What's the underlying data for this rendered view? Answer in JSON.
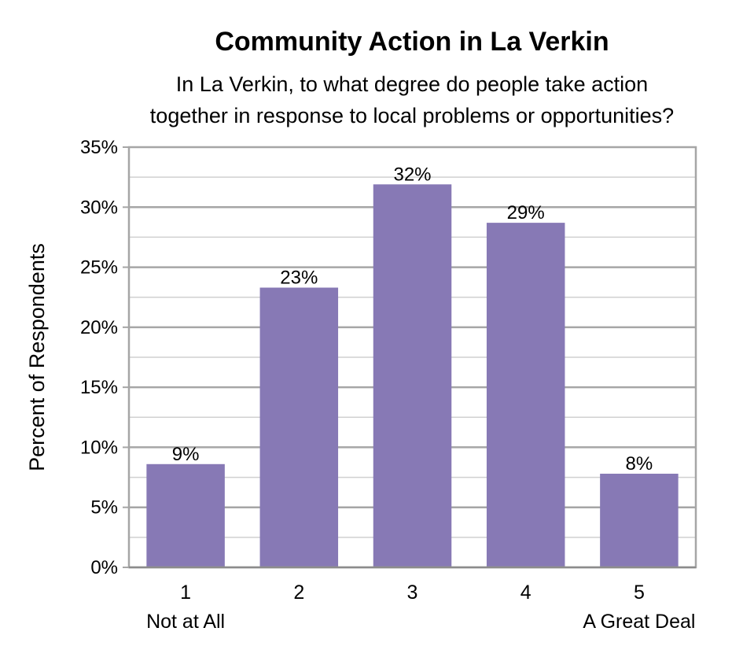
{
  "chart_data": {
    "type": "bar",
    "title": "Community Action in La Verkin",
    "subtitle_lines": [
      "In La Verkin, to what degree do people take action",
      "together in response to local problems or opportunities?"
    ],
    "ylabel": "Percent of Respondents",
    "xlabel": "",
    "categories": [
      "1",
      "2",
      "3",
      "4",
      "5"
    ],
    "category_sublabels": [
      "Not at All",
      "",
      "",
      "",
      "A Great Deal"
    ],
    "values": [
      8.6,
      23.3,
      31.9,
      28.7,
      7.8
    ],
    "data_labels": [
      "9%",
      "23%",
      "32%",
      "29%",
      "8%"
    ],
    "ylim": [
      0,
      35
    ],
    "y_ticks": [
      0,
      5,
      10,
      15,
      20,
      25,
      30,
      35
    ],
    "y_tick_labels": [
      "0%",
      "5%",
      "10%",
      "15%",
      "20%",
      "25%",
      "30%",
      "35%"
    ],
    "minor_gridline_step": 2.5,
    "grid": true,
    "legend": "none",
    "bar_color": "#8779B5",
    "grid_color": "#A6A6A6",
    "minor_grid_color": "#D0D0D0"
  }
}
